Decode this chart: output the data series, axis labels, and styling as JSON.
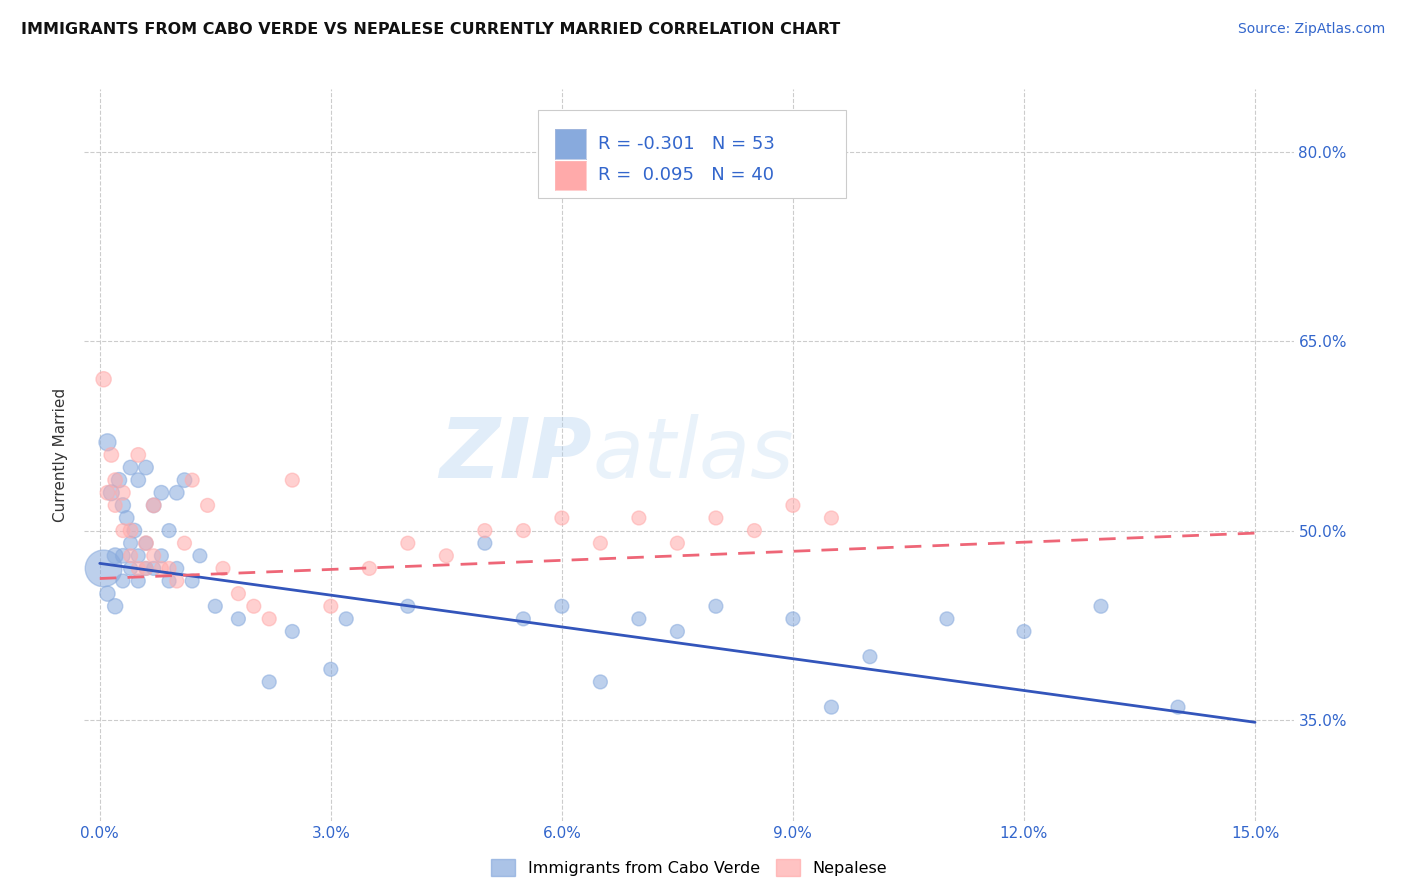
{
  "title": "IMMIGRANTS FROM CABO VERDE VS NEPALESE CURRENTLY MARRIED CORRELATION CHART",
  "source": "Source: ZipAtlas.com",
  "ylabel": "Currently Married",
  "ytick_labels": [
    "35.0%",
    "50.0%",
    "65.0%",
    "80.0%"
  ],
  "ytick_values": [
    0.35,
    0.5,
    0.65,
    0.8
  ],
  "xtick_values": [
    0.0,
    0.03,
    0.06,
    0.09,
    0.12,
    0.15
  ],
  "xtick_labels": [
    "0.0%",
    "3.0%",
    "6.0%",
    "9.0%",
    "12.0%",
    "15.0%"
  ],
  "xlim": [
    -0.002,
    0.155
  ],
  "ylim": [
    0.27,
    0.85
  ],
  "legend_series1_label": "Immigrants from Cabo Verde",
  "legend_series2_label": "Nepalese",
  "color_blue": "#88AADD",
  "color_pink": "#FFAAAA",
  "color_blue_line": "#3355BB",
  "color_pink_line": "#EE6677",
  "watermark_zip": "ZIP",
  "watermark_atlas": "atlas",
  "cabo_verde_x": [
    0.0005,
    0.001,
    0.001,
    0.0015,
    0.002,
    0.002,
    0.0025,
    0.003,
    0.003,
    0.003,
    0.0035,
    0.004,
    0.004,
    0.004,
    0.0045,
    0.005,
    0.005,
    0.005,
    0.006,
    0.006,
    0.006,
    0.007,
    0.007,
    0.008,
    0.008,
    0.009,
    0.009,
    0.01,
    0.01,
    0.011,
    0.012,
    0.013,
    0.015,
    0.018,
    0.022,
    0.025,
    0.03,
    0.032,
    0.04,
    0.05,
    0.055,
    0.06,
    0.065,
    0.07,
    0.075,
    0.08,
    0.09,
    0.095,
    0.1,
    0.11,
    0.12,
    0.13,
    0.14
  ],
  "cabo_verde_y": [
    0.47,
    0.57,
    0.45,
    0.53,
    0.48,
    0.44,
    0.54,
    0.52,
    0.48,
    0.46,
    0.51,
    0.55,
    0.49,
    0.47,
    0.5,
    0.54,
    0.48,
    0.46,
    0.55,
    0.49,
    0.47,
    0.52,
    0.47,
    0.53,
    0.48,
    0.5,
    0.46,
    0.53,
    0.47,
    0.54,
    0.46,
    0.48,
    0.44,
    0.43,
    0.38,
    0.42,
    0.39,
    0.43,
    0.44,
    0.49,
    0.43,
    0.44,
    0.38,
    0.43,
    0.42,
    0.44,
    0.43,
    0.36,
    0.4,
    0.43,
    0.42,
    0.44,
    0.36
  ],
  "cabo_verde_size": [
    700,
    150,
    120,
    130,
    130,
    120,
    120,
    120,
    110,
    100,
    110,
    110,
    100,
    100,
    110,
    110,
    100,
    100,
    110,
    100,
    100,
    110,
    100,
    110,
    100,
    100,
    100,
    110,
    100,
    110,
    100,
    100,
    100,
    100,
    100,
    100,
    100,
    100,
    100,
    100,
    100,
    100,
    100,
    100,
    100,
    100,
    100,
    100,
    100,
    100,
    100,
    100,
    100
  ],
  "nepalese_x": [
    0.0005,
    0.001,
    0.0015,
    0.002,
    0.002,
    0.003,
    0.003,
    0.004,
    0.004,
    0.005,
    0.005,
    0.006,
    0.006,
    0.007,
    0.007,
    0.008,
    0.009,
    0.01,
    0.011,
    0.012,
    0.014,
    0.016,
    0.018,
    0.02,
    0.022,
    0.025,
    0.03,
    0.035,
    0.04,
    0.045,
    0.05,
    0.055,
    0.06,
    0.065,
    0.07,
    0.075,
    0.08,
    0.085,
    0.09,
    0.095
  ],
  "nepalese_y": [
    0.62,
    0.53,
    0.56,
    0.54,
    0.52,
    0.53,
    0.5,
    0.5,
    0.48,
    0.56,
    0.47,
    0.49,
    0.47,
    0.52,
    0.48,
    0.47,
    0.47,
    0.46,
    0.49,
    0.54,
    0.52,
    0.47,
    0.45,
    0.44,
    0.43,
    0.54,
    0.44,
    0.47,
    0.49,
    0.48,
    0.5,
    0.5,
    0.51,
    0.49,
    0.51,
    0.49,
    0.51,
    0.5,
    0.52,
    0.51
  ],
  "nepalese_size": [
    120,
    110,
    110,
    110,
    100,
    110,
    100,
    110,
    100,
    110,
    100,
    110,
    100,
    110,
    100,
    100,
    100,
    100,
    100,
    100,
    100,
    100,
    100,
    100,
    100,
    100,
    100,
    100,
    100,
    100,
    100,
    100,
    100,
    100,
    100,
    100,
    100,
    100,
    100,
    100
  ],
  "blue_line_x": [
    0.0,
    0.15
  ],
  "blue_line_y": [
    0.474,
    0.348
  ],
  "pink_line_x": [
    0.0,
    0.15
  ],
  "pink_line_y": [
    0.462,
    0.498
  ]
}
